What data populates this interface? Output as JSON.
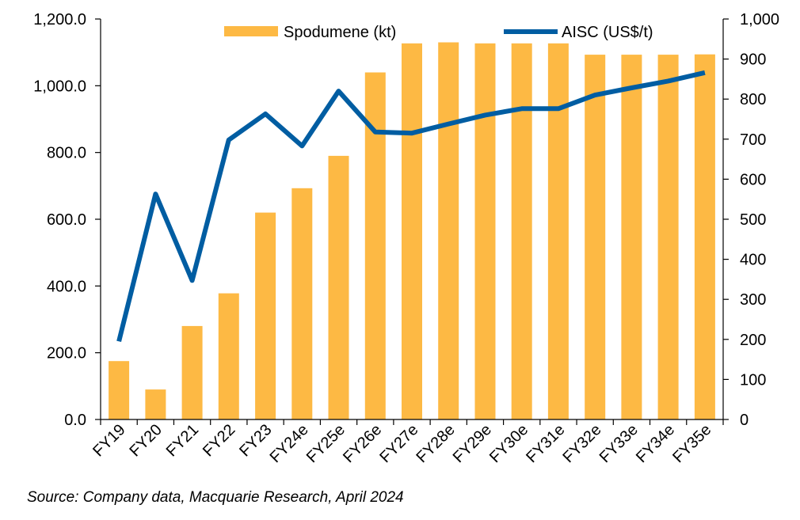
{
  "chart_data": {
    "type": "bar",
    "categories": [
      "FY19",
      "FY20",
      "FY21",
      "FY22",
      "FY23",
      "FY24e",
      "FY25e",
      "FY26e",
      "FY27e",
      "FY28e",
      "FY29e",
      "FY30e",
      "FY31e",
      "FY32e",
      "FY33e",
      "FY34e",
      "FY35e"
    ],
    "series": [
      {
        "name": "Spodumene (kt)",
        "type": "bar",
        "axis": "left",
        "color": "#FDB944",
        "values": [
          175,
          90,
          280,
          378,
          620,
          693,
          790,
          1040,
          1127,
          1130,
          1127,
          1127,
          1127,
          1093,
          1093,
          1093,
          1094
        ]
      },
      {
        "name": "AISC (US$/t)",
        "type": "line",
        "axis": "right",
        "color": "#005DA2",
        "values": [
          195,
          563,
          347,
          698,
          763,
          683,
          820,
          718,
          715,
          738,
          760,
          776,
          776,
          810,
          828,
          845,
          866
        ]
      }
    ],
    "y_left": {
      "min": 0,
      "max": 1200,
      "step": 200,
      "tick_labels": [
        "0.0",
        "200.0",
        "400.0",
        "600.0",
        "800.0",
        "1,000.0",
        "1,200.0"
      ]
    },
    "y_right": {
      "min": 0,
      "max": 1000,
      "step": 100,
      "tick_labels": [
        "0",
        "100",
        "200",
        "300",
        "400",
        "500",
        "600",
        "700",
        "800",
        "900",
        "1,000"
      ]
    },
    "legend": {
      "position": "top-center",
      "entries": [
        "Spodumene (kt)",
        "AISC (US$/t)"
      ]
    },
    "grid": false,
    "source": "Source: Company data, Macquarie Research, April 2024"
  }
}
